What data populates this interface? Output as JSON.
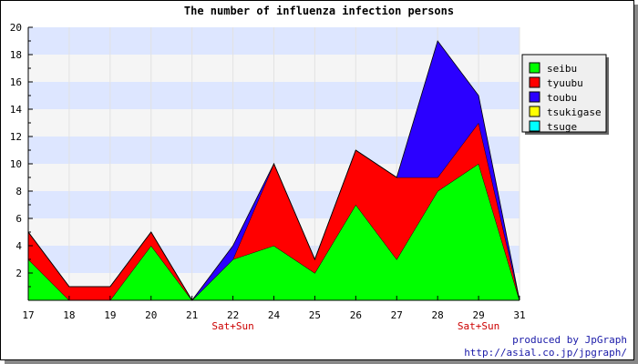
{
  "chart_data": {
    "type": "area",
    "stacked": true,
    "title": "The number of influenza infection persons",
    "xlabel": "",
    "ylabel": "",
    "ylim": [
      0,
      20
    ],
    "yticks": [
      "2",
      "4",
      "6",
      "8",
      "10",
      "12",
      "14",
      "16",
      "18",
      "20"
    ],
    "x": [
      "17",
      "18",
      "19",
      "20",
      "21",
      "22",
      "24",
      "25",
      "26",
      "27",
      "28",
      "29",
      "31"
    ],
    "x_sublabels": [
      "",
      "",
      "",
      "",
      "",
      "Sat+Sun",
      "",
      "",
      "",
      "",
      "",
      "Sat+Sun",
      ""
    ],
    "series": [
      {
        "name": "seibu",
        "color": "#00ff00",
        "values": [
          3,
          0,
          0,
          4,
          0,
          3,
          4,
          2,
          7,
          3,
          8,
          10,
          0
        ]
      },
      {
        "name": "tyuubu",
        "color": "#ff0000",
        "values": [
          2,
          1,
          1,
          1,
          0,
          0,
          6,
          1,
          4,
          6,
          1,
          3,
          0
        ]
      },
      {
        "name": "toubu",
        "color": "#2b00ff",
        "values": [
          0,
          0,
          0,
          0,
          0,
          1,
          0,
          0,
          0,
          0,
          10,
          2,
          0
        ]
      },
      {
        "name": "tsukigase",
        "color": "#ffff00",
        "values": [
          0,
          0,
          0,
          0,
          0,
          0,
          0,
          0,
          0,
          0,
          0,
          0,
          0
        ]
      },
      {
        "name": "tsuge",
        "color": "#00ffff",
        "values": [
          0,
          0,
          0,
          0,
          0,
          0,
          0,
          0,
          0,
          0,
          0,
          0,
          0
        ]
      }
    ],
    "legend_position": "top-right",
    "grid": true,
    "band_colors": [
      "#f5f5f5",
      "#dde6ff"
    ]
  },
  "footer": {
    "credit_line1": "produced by JpGraph",
    "credit_line2": "http://asial.co.jp/jpgraph/"
  }
}
